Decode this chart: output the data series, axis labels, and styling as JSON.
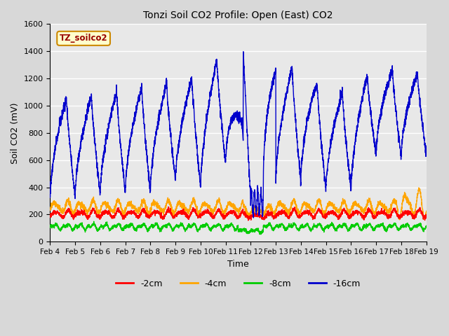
{
  "title": "Tonzi Soil CO2 Profile: Open (East) CO2",
  "ylabel": "Soil CO2 (mV)",
  "xlabel": "Time",
  "watermark": "TZ_soilco2",
  "ylim": [
    0,
    1600
  ],
  "yticks": [
    0,
    200,
    400,
    600,
    800,
    1000,
    1200,
    1400,
    1600
  ],
  "xtick_labels": [
    "Feb 4",
    "Feb 5",
    "Feb 6",
    "Feb 7",
    "Feb 8",
    "Feb 9",
    "Feb 10",
    "Feb 11",
    "Feb 12",
    "Feb 13",
    "Feb 14",
    "Feb 15",
    "Feb 16",
    "Feb 17",
    "Feb 18",
    "Feb 19"
  ],
  "colors": {
    "neg2cm": "#ff0000",
    "neg4cm": "#ffa500",
    "neg8cm": "#00cc00",
    "neg16cm": "#0000cc"
  },
  "legend_labels": [
    "-2cm",
    "-4cm",
    "-8cm",
    "-16cm"
  ],
  "bg_color": "#d8d8d8",
  "plot_bg_color": "#e8e8e8",
  "watermark_bg": "#ffffcc",
  "watermark_border": "#cc8800",
  "watermark_text_color": "#990000"
}
